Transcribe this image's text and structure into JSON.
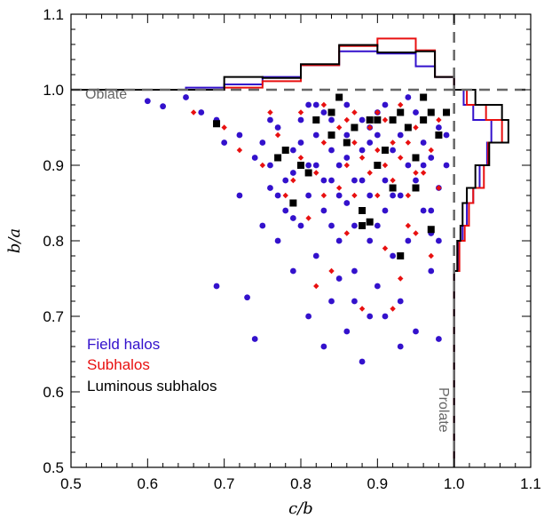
{
  "chart_data": {
    "type": "scatter",
    "xlabel": "c/b",
    "ylabel": "b/a",
    "xlim": [
      0.5,
      1.1
    ],
    "ylim": [
      0.5,
      1.1
    ],
    "x_ticks": [
      "0.5",
      "0.6",
      "0.7",
      "0.8",
      "0.9",
      "1.0",
      "1.1"
    ],
    "y_ticks": [
      "0.5",
      "0.6",
      "0.7",
      "0.8",
      "0.9",
      "1.0",
      "1.1"
    ],
    "grid": false,
    "legend_placement": "bottom-left",
    "annotations": {
      "oblate": "Oblate",
      "prolate": "Prolate"
    },
    "reference_lines": {
      "x": 1.0,
      "y": 1.0,
      "color": "#666666",
      "style": "dashed"
    },
    "series": [
      {
        "name": "Field halos",
        "color": "#3311cc",
        "marker": "circle",
        "points": [
          [
            0.6,
            0.985
          ],
          [
            0.62,
            0.978
          ],
          [
            0.65,
            0.99
          ],
          [
            0.67,
            0.97
          ],
          [
            0.69,
            0.96
          ],
          [
            0.69,
            0.74
          ],
          [
            0.72,
            0.94
          ],
          [
            0.73,
            0.725
          ],
          [
            0.74,
            0.67
          ],
          [
            0.75,
            0.93
          ],
          [
            0.76,
            0.87
          ],
          [
            0.76,
            0.9
          ],
          [
            0.77,
            0.95
          ],
          [
            0.77,
            0.8
          ],
          [
            0.78,
            0.84
          ],
          [
            0.78,
            0.88
          ],
          [
            0.79,
            0.92
          ],
          [
            0.79,
            0.76
          ],
          [
            0.8,
            0.96
          ],
          [
            0.8,
            0.82
          ],
          [
            0.81,
            0.86
          ],
          [
            0.81,
            0.9
          ],
          [
            0.81,
            0.7
          ],
          [
            0.82,
            0.94
          ],
          [
            0.82,
            0.98
          ],
          [
            0.82,
            0.78
          ],
          [
            0.83,
            0.88
          ],
          [
            0.83,
            0.84
          ],
          [
            0.83,
            0.66
          ],
          [
            0.84,
            0.92
          ],
          [
            0.84,
            0.96
          ],
          [
            0.84,
            0.72
          ],
          [
            0.85,
            0.8
          ],
          [
            0.85,
            0.86
          ],
          [
            0.85,
            0.9
          ],
          [
            0.86,
            0.94
          ],
          [
            0.86,
            0.98
          ],
          [
            0.86,
            0.68
          ],
          [
            0.87,
            0.82
          ],
          [
            0.87,
            0.88
          ],
          [
            0.87,
            0.76
          ],
          [
            0.88,
            0.64
          ],
          [
            0.88,
            0.92
          ],
          [
            0.88,
            0.96
          ],
          [
            0.89,
            0.86
          ],
          [
            0.89,
            0.7
          ],
          [
            0.89,
            0.8
          ],
          [
            0.9,
            0.94
          ],
          [
            0.9,
            0.9
          ],
          [
            0.9,
            0.74
          ],
          [
            0.91,
            0.88
          ],
          [
            0.91,
            0.84
          ],
          [
            0.91,
            0.98
          ],
          [
            0.92,
            0.92
          ],
          [
            0.92,
            0.96
          ],
          [
            0.92,
            0.78
          ],
          [
            0.93,
            0.86
          ],
          [
            0.93,
            0.72
          ],
          [
            0.94,
            0.9
          ],
          [
            0.94,
            0.95
          ],
          [
            0.94,
            0.8
          ],
          [
            0.95,
            0.88
          ],
          [
            0.95,
            0.68
          ],
          [
            0.96,
            0.93
          ],
          [
            0.96,
            0.84
          ],
          [
            0.97,
            0.97
          ],
          [
            0.97,
            0.76
          ],
          [
            0.97,
            0.91
          ],
          [
            0.98,
            0.87
          ],
          [
            0.98,
            0.8
          ],
          [
            0.98,
            0.67
          ],
          [
            0.99,
            0.94
          ],
          [
            0.74,
            0.91
          ],
          [
            0.76,
            0.96
          ],
          [
            0.79,
            0.89
          ],
          [
            0.8,
            0.93
          ],
          [
            0.83,
            0.97
          ],
          [
            0.84,
            0.82
          ],
          [
            0.86,
            0.85
          ],
          [
            0.88,
            0.88
          ],
          [
            0.89,
            0.95
          ],
          [
            0.9,
            0.82
          ],
          [
            0.92,
            0.86
          ],
          [
            0.93,
            0.94
          ],
          [
            0.95,
            0.97
          ],
          [
            0.96,
            0.9
          ],
          [
            0.97,
            0.84
          ],
          [
            0.85,
            0.75
          ],
          [
            0.87,
            0.72
          ],
          [
            0.91,
            0.7
          ],
          [
            0.93,
            0.66
          ],
          [
            0.81,
            0.98
          ],
          [
            0.77,
            0.86
          ],
          [
            0.79,
            0.83
          ],
          [
            0.82,
            0.9
          ],
          [
            0.86,
            0.91
          ],
          [
            0.89,
            0.93
          ],
          [
            0.94,
            0.99
          ],
          [
            0.98,
            0.95
          ],
          [
            0.72,
            0.86
          ],
          [
            0.7,
            0.93
          ],
          [
            0.75,
            0.82
          ],
          [
            0.84,
            0.88
          ],
          [
            0.9,
            0.97
          ],
          [
            0.95,
            0.91
          ],
          [
            0.97,
            0.81
          ],
          [
            0.99,
            0.9
          ]
        ]
      },
      {
        "name": "Subhalos",
        "color": "#e81010",
        "marker": "diamond",
        "points": [
          [
            0.66,
            0.97
          ],
          [
            0.7,
            0.95
          ],
          [
            0.72,
            0.92
          ],
          [
            0.75,
            0.9
          ],
          [
            0.77,
            0.94
          ],
          [
            0.78,
            0.86
          ],
          [
            0.8,
            0.91
          ],
          [
            0.8,
            0.97
          ],
          [
            0.81,
            0.83
          ],
          [
            0.82,
            0.89
          ],
          [
            0.83,
            0.93
          ],
          [
            0.83,
            0.98
          ],
          [
            0.84,
            0.76
          ],
          [
            0.85,
            0.87
          ],
          [
            0.85,
            0.95
          ],
          [
            0.86,
            0.81
          ],
          [
            0.86,
            0.9
          ],
          [
            0.87,
            0.93
          ],
          [
            0.87,
            0.97
          ],
          [
            0.88,
            0.84
          ],
          [
            0.88,
            0.71
          ],
          [
            0.89,
            0.89
          ],
          [
            0.89,
            0.95
          ],
          [
            0.9,
            0.86
          ],
          [
            0.9,
            0.92
          ],
          [
            0.91,
            0.79
          ],
          [
            0.91,
            0.96
          ],
          [
            0.92,
            0.88
          ],
          [
            0.92,
            0.93
          ],
          [
            0.93,
            0.75
          ],
          [
            0.93,
            0.98
          ],
          [
            0.94,
            0.86
          ],
          [
            0.94,
            0.93
          ],
          [
            0.95,
            0.81
          ],
          [
            0.95,
            0.95
          ],
          [
            0.96,
            0.89
          ],
          [
            0.97,
            0.92
          ],
          [
            0.97,
            0.78
          ],
          [
            0.98,
            0.96
          ],
          [
            0.98,
            0.87
          ],
          [
            0.83,
            0.86
          ],
          [
            0.86,
            0.96
          ],
          [
            0.88,
            0.91
          ],
          [
            0.91,
            0.9
          ],
          [
            0.93,
            0.91
          ],
          [
            0.95,
            0.89
          ],
          [
            0.84,
            0.94
          ],
          [
            0.9,
            0.97
          ],
          [
            0.96,
            0.96
          ],
          [
            0.82,
            0.74
          ],
          [
            0.92,
            0.71
          ],
          [
            0.76,
            0.97
          ],
          [
            0.79,
            0.88
          ],
          [
            0.87,
            0.86
          ],
          [
            0.94,
            0.82
          ]
        ]
      },
      {
        "name": "Luminous subhalos",
        "color": "#000000",
        "marker": "square",
        "points": [
          [
            0.69,
            0.955
          ],
          [
            0.77,
            0.91
          ],
          [
            0.78,
            0.92
          ],
          [
            0.8,
            0.9
          ],
          [
            0.81,
            0.89
          ],
          [
            0.82,
            0.96
          ],
          [
            0.84,
            0.97
          ],
          [
            0.85,
            0.99
          ],
          [
            0.86,
            0.93
          ],
          [
            0.87,
            0.95
          ],
          [
            0.88,
            0.82
          ],
          [
            0.88,
            0.84
          ],
          [
            0.89,
            0.96
          ],
          [
            0.89,
            0.825
          ],
          [
            0.9,
            0.9
          ],
          [
            0.91,
            0.92
          ],
          [
            0.92,
            0.87
          ],
          [
            0.93,
            0.97
          ],
          [
            0.94,
            0.95
          ],
          [
            0.95,
            0.87
          ],
          [
            0.96,
            0.99
          ],
          [
            0.97,
            0.97
          ],
          [
            0.97,
            0.815
          ],
          [
            0.98,
            0.94
          ],
          [
            0.95,
            0.91
          ],
          [
            0.93,
            0.78
          ],
          [
            0.79,
            0.85
          ],
          [
            0.84,
            0.94
          ],
          [
            0.9,
            0.96
          ],
          [
            0.96,
            0.96
          ],
          [
            0.99,
            0.97
          ],
          [
            0.92,
            0.96
          ]
        ]
      }
    ],
    "histograms": {
      "top": {
        "bin_edges": [
          0.5,
          0.55,
          0.6,
          0.65,
          0.7,
          0.75,
          0.8,
          0.85,
          0.9,
          0.95,
          0.975,
          1.0
        ],
        "Field halos": [
          0,
          0,
          0,
          0.002,
          0.005,
          0.012,
          0.023,
          0.036,
          0.034,
          0.022,
          0.012
        ],
        "Subhalos": [
          0,
          0,
          0,
          0,
          0.002,
          0.008,
          0.023,
          0.041,
          0.048,
          0.037,
          0.012
        ],
        "Luminous subhalos": [
          0,
          0,
          0,
          0,
          0.012,
          0.011,
          0.024,
          0.042,
          0.035,
          0.036,
          0.012
        ]
      },
      "right": {
        "bin_edges": [
          0.5,
          0.76,
          0.8,
          0.82,
          0.85,
          0.87,
          0.9,
          0.93,
          0.96,
          0.98,
          1.0
        ],
        "Field halos": [
          0,
          0.004,
          0.008,
          0.012,
          0.018,
          0.024,
          0.031,
          0.035,
          0.018,
          0.009
        ],
        "Subhalos": [
          0,
          0.005,
          0.01,
          0.014,
          0.018,
          0.028,
          0.032,
          0.045,
          0.03,
          0.012
        ],
        "Luminous subhalos": [
          0,
          0.003,
          0.006,
          0.008,
          0.012,
          0.02,
          0.033,
          0.051,
          0.045,
          0.02
        ]
      }
    }
  }
}
